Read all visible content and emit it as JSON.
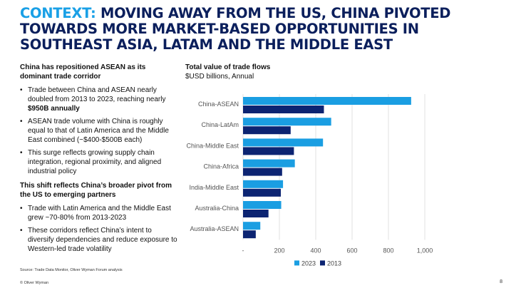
{
  "title": {
    "accent": "CONTEXT:",
    "main": "MOVING AWAY FROM THE US, CHINA PIVOTED TOWARDS MORE MARKET-BASED OPPORTUNITIES IN SOUTHEAST ASIA, LATAM AND THE MIDDLE EAST"
  },
  "left": {
    "heading1": "China has repositioned ASEAN as its dominant trade corridor",
    "bullet1_pre": "Trade between China and ASEAN nearly doubled from 2013 to 2023, reaching nearly ",
    "bullet1_bold": "$950B annually",
    "bullet2": "ASEAN trade volume with China is roughly equal to that of Latin America and the Middle East combined (~$400-$500B each)",
    "bullet3": "This surge reflects growing supply chain integration, regional proximity, and aligned industrial policy",
    "heading2": "This shift reflects China’s broader pivot from the US to emerging partners",
    "bullet4": "Trade with Latin America and the Middle East grew ~70-80% from 2013-2023",
    "bullet5": "These corridors reflect China’s intent to diversify dependencies and reduce exposure to Western-led trade volatility"
  },
  "chart_head": {
    "title": "Total value of trade flows",
    "subtitle": "$USD billions, Annual"
  },
  "chart_data": {
    "type": "bar",
    "orientation": "horizontal",
    "title": "Total value of trade flows",
    "subtitle": "$USD billions, Annual",
    "categories": [
      "China-ASEAN",
      "China-LatAm",
      "China-Middle East",
      "China-Africa",
      "India-Middle East",
      "Australia-China",
      "Australia-ASEAN"
    ],
    "series": [
      {
        "name": "2023",
        "color": "#1a9ee2",
        "values": [
          925,
          485,
          440,
          285,
          220,
          210,
          95
        ]
      },
      {
        "name": "2013",
        "color": "#0c2472",
        "values": [
          445,
          262,
          280,
          215,
          208,
          140,
          70
        ]
      }
    ],
    "xlim": [
      0,
      1000
    ],
    "xticks": [
      0,
      200,
      400,
      600,
      800,
      1000
    ],
    "xtick_labels": [
      "-",
      "200",
      "400",
      "600",
      "800",
      "1,000"
    ],
    "grid": true,
    "legend": "bottom"
  },
  "source": "Source: Trade Data Monitor, Oliver Wyman Forum analysis",
  "footer": "© Oliver Wyman",
  "page_number": "8"
}
